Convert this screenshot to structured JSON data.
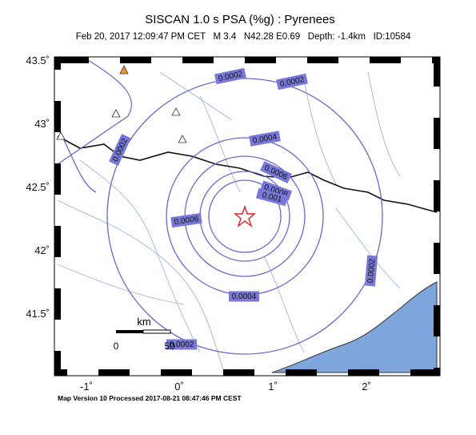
{
  "header": {
    "title": "SISCAN 1.0 s PSA (%g) : Pyrenees",
    "subtitle": "Feb 20, 2017 12:09:47 PM CET   M 3.4   N42.28 E0.69   Depth: -1.4km   ID:10584"
  },
  "axes": {
    "y_labels": [
      "43.5˚",
      "43˚",
      "42.5˚",
      "42˚",
      "41.5˚"
    ],
    "x_labels": [
      "-1˚",
      "0˚",
      "1˚",
      "2˚"
    ]
  },
  "contour_labels": [
    "0.0002",
    "0.0002",
    "0.0002",
    "0.0002",
    "0.0002",
    "0.0004",
    "0.0004",
    "0.0006",
    "0.0006",
    "0.0008",
    "0.001"
  ],
  "scale_bar": {
    "unit": "km",
    "start": "0",
    "end": "50"
  },
  "footer": "Map Version 10 Processed 2017-08-21 08:47:46 PM CEST"
}
